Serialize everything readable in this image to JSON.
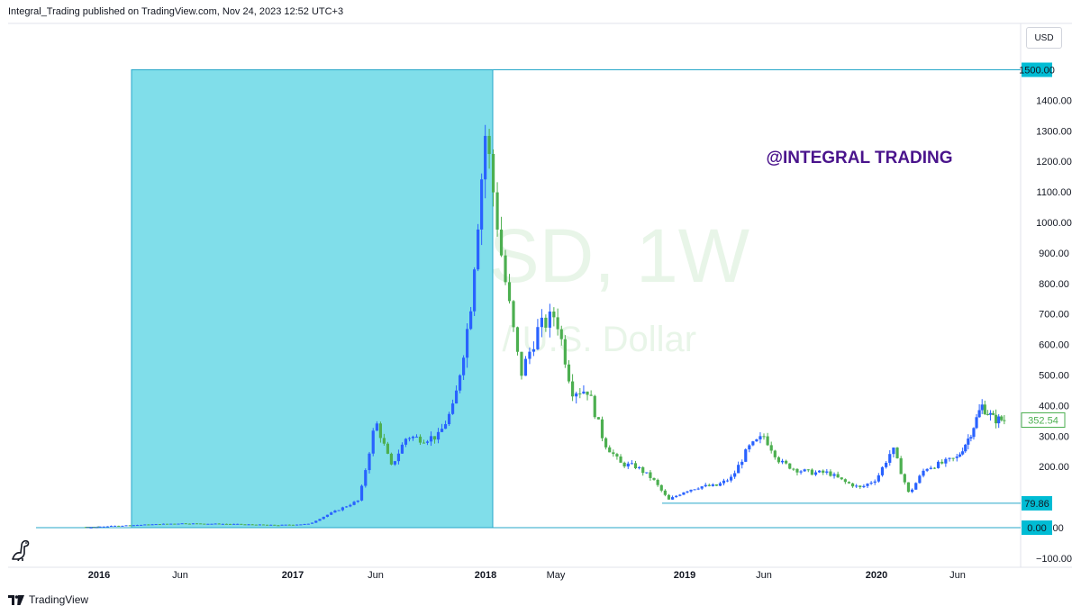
{
  "header": {
    "attribution": "Integral_Trading published on TradingView.com, Nov 24, 2023 12:52 UTC+3"
  },
  "footer": {
    "brand": "TradingView",
    "logo_icon": "tradingview-logo-icon"
  },
  "controls": {
    "currency": "USD"
  },
  "watermark": {
    "symbol": "ETHUSD, 1W",
    "description": "Ethereum / U.S. Dollar"
  },
  "annotation": {
    "text": "@INTEGRAL TRADING",
    "color": "#4a148c"
  },
  "colors": {
    "up": "#2962ff",
    "down": "#4caf50",
    "zone": "#80deea",
    "line": "#26a7c9",
    "label_bg": "#00bcd4"
  },
  "chart_data": {
    "type": "candlestick",
    "symbol": "ETHUSD",
    "timeframe": "1W",
    "x_ticks": [
      "2016",
      "Jun",
      "2017",
      "Jun",
      "2018",
      "May",
      "2019",
      "Jun",
      "2020",
      "Jun"
    ],
    "y_axis": {
      "ticks": [
        1400,
        1300,
        1200,
        1100,
        1000,
        900,
        800,
        700,
        600,
        500,
        400,
        300,
        200,
        0,
        -100
      ],
      "tick_labels": [
        "1400.00",
        "1300.00",
        "1200.00",
        "1100.00",
        "1000.00",
        "900.00",
        "800.00",
        "700.00",
        "600.00",
        "500.00",
        "400.00",
        "300.00",
        "200.00",
        "0.00",
        "−100.00"
      ],
      "range": [
        -120,
        1560
      ]
    },
    "price_lines": [
      {
        "label": "1500.00",
        "value": 1500
      },
      {
        "label": "79.86",
        "value": 79.86
      },
      {
        "label": "0.00",
        "value": 0
      }
    ],
    "last_price": {
      "label": "352.54",
      "value": 352.54
    },
    "shaded_zone": {
      "x_start": "2016-03",
      "x_end": "2018-01",
      "y_low": 0,
      "y_high": 1500
    },
    "price_path": [
      [
        "2015-08",
        2
      ],
      [
        "2015-12",
        1
      ],
      [
        "2016-03",
        8
      ],
      [
        "2016-06",
        14
      ],
      [
        "2016-09",
        12
      ],
      [
        "2016-12",
        8
      ],
      [
        "2017-02",
        12
      ],
      [
        "2017-03",
        40
      ],
      [
        "2017-05",
        90
      ],
      [
        "2017-06",
        350
      ],
      [
        "2017-07",
        200
      ],
      [
        "2017-08",
        300
      ],
      [
        "2017-09",
        290
      ],
      [
        "2017-10",
        300
      ],
      [
        "2017-11",
        400
      ],
      [
        "2017-12",
        700
      ],
      [
        "2018-01",
        1300
      ],
      [
        "2018-02",
        850
      ],
      [
        "2018-03",
        500
      ],
      [
        "2018-04",
        650
      ],
      [
        "2018-05",
        700
      ],
      [
        "2018-06",
        450
      ],
      [
        "2018-07",
        450
      ],
      [
        "2018-08",
        280
      ],
      [
        "2018-09",
        210
      ],
      [
        "2018-10",
        200
      ],
      [
        "2018-11",
        160
      ],
      [
        "2018-12",
        90
      ],
      [
        "2019-01",
        120
      ],
      [
        "2019-02",
        135
      ],
      [
        "2019-03",
        137
      ],
      [
        "2019-04",
        165
      ],
      [
        "2019-05",
        260
      ],
      [
        "2019-06",
        300
      ],
      [
        "2019-07",
        215
      ],
      [
        "2019-08",
        190
      ],
      [
        "2019-09",
        180
      ],
      [
        "2019-10",
        180
      ],
      [
        "2019-11",
        150
      ],
      [
        "2019-12",
        130
      ],
      [
        "2020-01",
        160
      ],
      [
        "2020-02",
        260
      ],
      [
        "2020-03",
        110
      ],
      [
        "2020-04",
        195
      ],
      [
        "2020-05",
        210
      ],
      [
        "2020-06",
        230
      ],
      [
        "2020-07",
        300
      ],
      [
        "2020-08",
        400
      ],
      [
        "2020-09",
        355
      ],
      [
        "2020-10",
        352.54
      ]
    ]
  }
}
